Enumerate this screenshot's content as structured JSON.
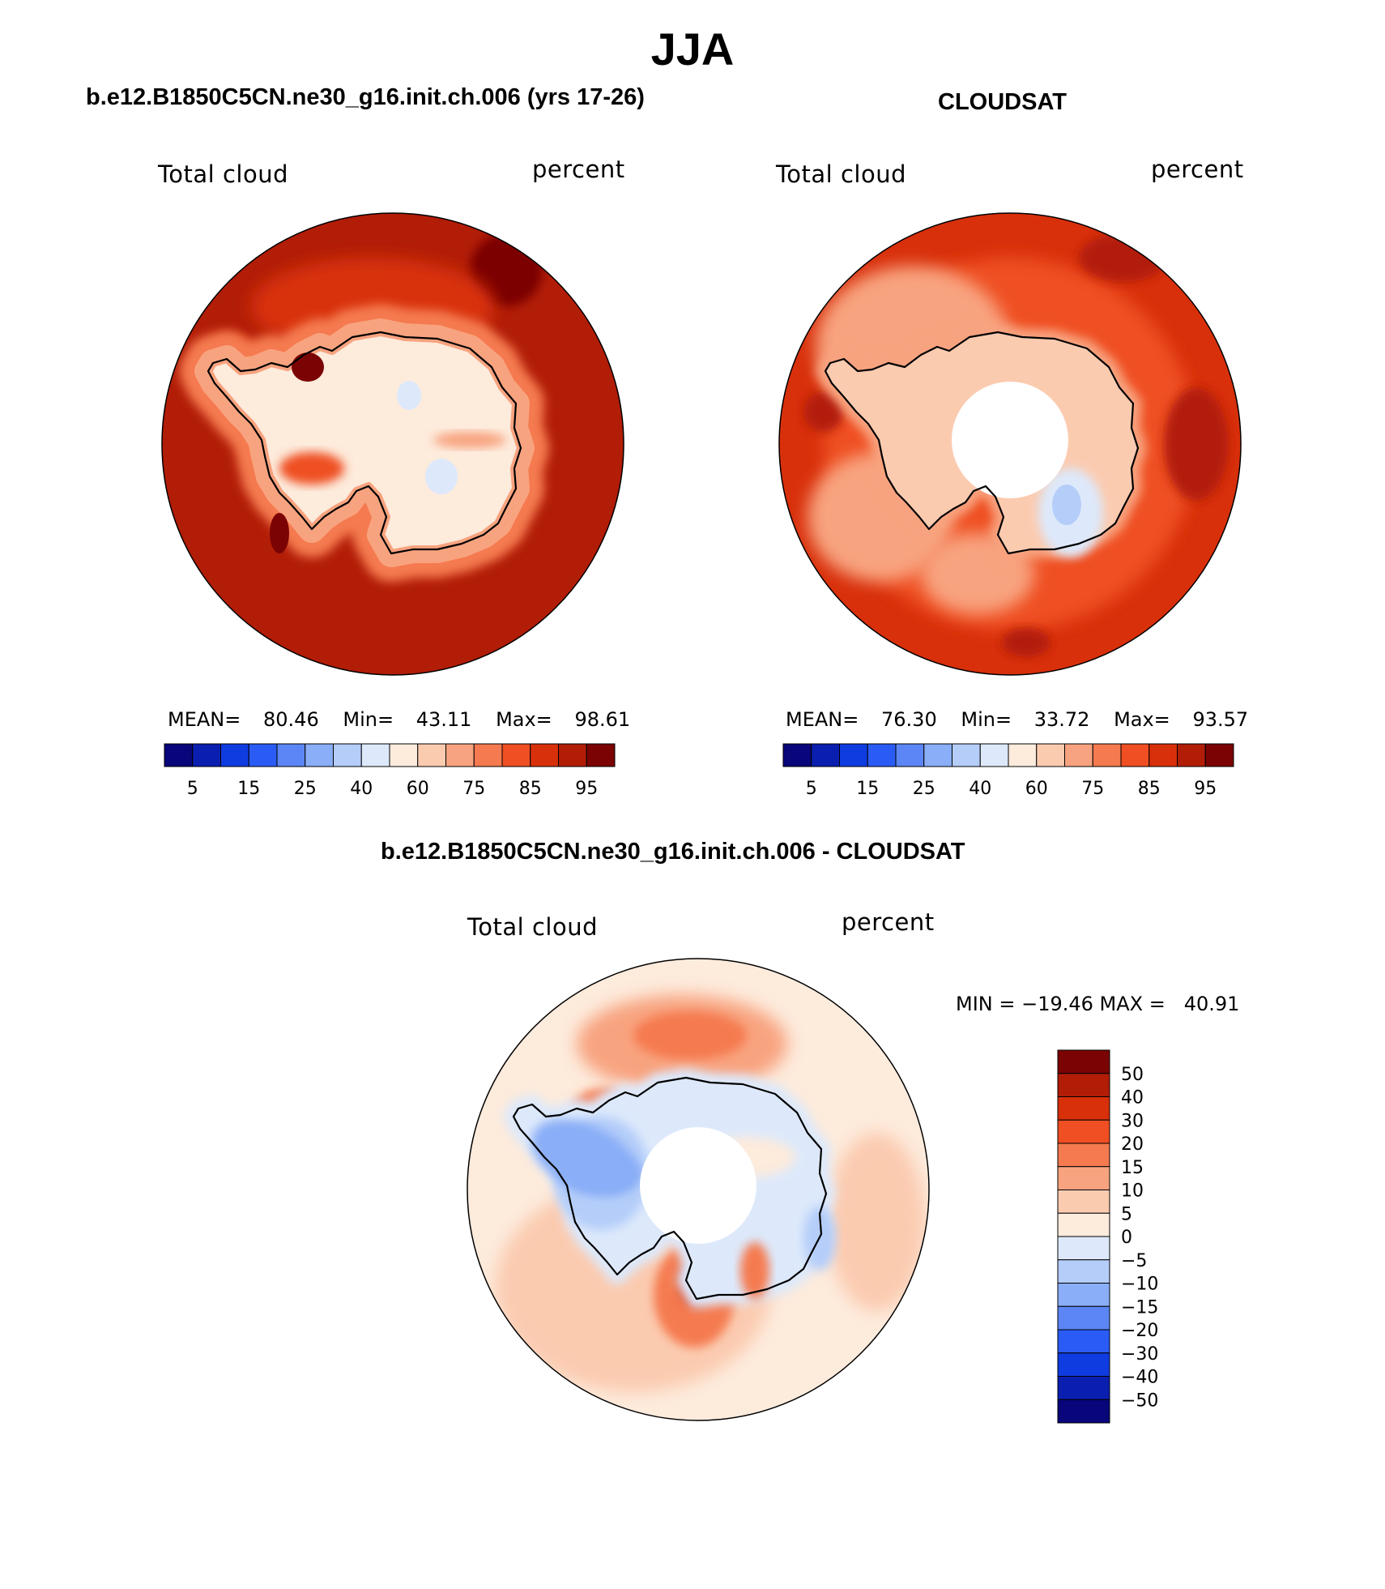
{
  "figure": {
    "season": "JJA"
  },
  "panels": {
    "model": {
      "title": "b.e12.B1850C5CN.ne30_g16.init.ch.006 (yrs 17-26)",
      "left_label": "Total cloud",
      "right_label": "percent",
      "stats": {
        "mean_label": "MEAN=",
        "mean": "80.46",
        "min_label": "Min=",
        "min": "43.11",
        "max_label": "Max=",
        "max": "98.61"
      }
    },
    "obs": {
      "title": "CLOUDSAT",
      "left_label": "Total cloud",
      "right_label": "percent",
      "stats": {
        "mean_label": "MEAN=",
        "mean": "76.30",
        "min_label": "Min=",
        "min": "33.72",
        "max_label": "Max=",
        "max": "93.57"
      }
    },
    "diff": {
      "title": "b.e12.B1850C5CN.ne30_g16.init.ch.006 - CLOUDSAT",
      "left_label": "Total cloud",
      "right_label": "percent",
      "minmax": "MIN = −19.46 MAX =   40.91"
    }
  },
  "chart_data": [
    {
      "type": "heatmap",
      "projection": "south-polar stereographic",
      "title": "b.e12.B1850C5CN.ne30_g16.init.ch.006 (yrs 17-26)",
      "variable": "Total cloud",
      "units": "percent",
      "mean": 80.46,
      "min": 43.11,
      "max": 98.61,
      "colorbar_labels": [
        "5",
        "15",
        "25",
        "40",
        "60",
        "75",
        "85",
        "95"
      ],
      "colorbar_colors": [
        "#08067a",
        "#0a1fb0",
        "#0f3ce0",
        "#2a5cf5",
        "#5c86f5",
        "#8aaef7",
        "#b4cdf9",
        "#dde9fb",
        "#fdebdc",
        "#fbcbb0",
        "#f8a37f",
        "#f57a50",
        "#ef4f22",
        "#d8300b",
        "#b21d07",
        "#7b0303"
      ],
      "regions": [
        {
          "name": "ocean-band",
          "value": 90
        },
        {
          "name": "coast-band",
          "value": 78
        },
        {
          "name": "antarctic-interior",
          "value": 58
        },
        {
          "name": "plateau-minimum",
          "value": 45
        }
      ]
    },
    {
      "type": "heatmap",
      "projection": "south-polar stereographic",
      "title": "CLOUDSAT",
      "variable": "Total cloud",
      "units": "percent",
      "mean": 76.3,
      "min": 33.72,
      "max": 93.57,
      "colorbar_labels": [
        "5",
        "15",
        "25",
        "40",
        "60",
        "75",
        "85",
        "95"
      ],
      "colorbar_colors": [
        "#08067a",
        "#0a1fb0",
        "#0f3ce0",
        "#2a5cf5",
        "#5c86f5",
        "#8aaef7",
        "#b4cdf9",
        "#dde9fb",
        "#fdebdc",
        "#fbcbb0",
        "#f8a37f",
        "#f57a50",
        "#ef4f22",
        "#d8300b",
        "#b21d07",
        "#7b0303"
      ],
      "regions": [
        {
          "name": "ocean-band",
          "value": 86
        },
        {
          "name": "coast-band",
          "value": 72
        },
        {
          "name": "antarctic-interior",
          "value": 62
        },
        {
          "name": "east-antarctic-minimum",
          "value": 38
        },
        {
          "name": "pole-hole",
          "value": null
        }
      ]
    },
    {
      "type": "heatmap",
      "projection": "south-polar stereographic",
      "title": "b.e12.B1850C5CN.ne30_g16.init.ch.006 - CLOUDSAT",
      "variable": "Total cloud",
      "units": "percent",
      "min": -19.46,
      "max": 40.91,
      "colorbar_labels": [
        "50",
        "40",
        "30",
        "20",
        "15",
        "10",
        "5",
        "0",
        "−5",
        "−10",
        "−15",
        "−20",
        "−30",
        "−40",
        "−50"
      ],
      "colorbar_colors": [
        "#7b0303",
        "#b21d07",
        "#d8300b",
        "#ef4f22",
        "#f57a50",
        "#f8a37f",
        "#fbcbb0",
        "#fdebdc",
        "#dde9fb",
        "#b4cdf9",
        "#8aaef7",
        "#5c86f5",
        "#2a5cf5",
        "#0f3ce0",
        "#0a1fb0",
        "#08067a"
      ],
      "regions": [
        {
          "name": "ocean-background",
          "value": 3
        },
        {
          "name": "bellingshausen-positive",
          "value": 18
        },
        {
          "name": "ross-sea-positive",
          "value": 30
        },
        {
          "name": "peninsula-negative",
          "value": -15
        },
        {
          "name": "east-antarctic-negative",
          "value": -4
        },
        {
          "name": "pole-hole",
          "value": null
        }
      ]
    }
  ]
}
